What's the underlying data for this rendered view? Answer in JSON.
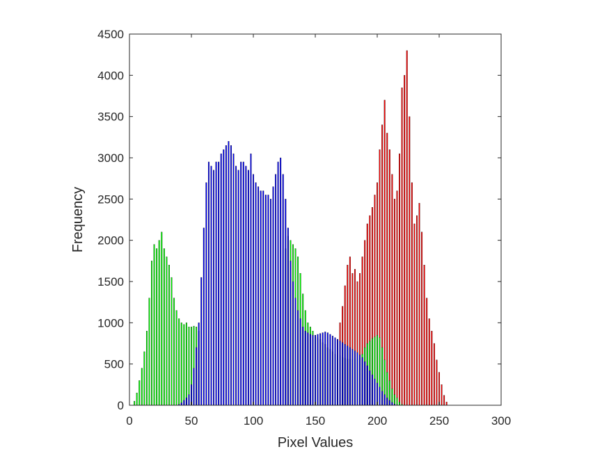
{
  "chart_data": {
    "type": "bar",
    "title": "",
    "xlabel": "Pixel Values",
    "ylabel": "Frequency",
    "xlim": [
      0,
      300
    ],
    "ylim": [
      0,
      4500
    ],
    "xticks": [
      0,
      50,
      100,
      150,
      200,
      250,
      300
    ],
    "yticks": [
      0,
      500,
      1000,
      1500,
      2000,
      2500,
      3000,
      3500,
      4000,
      4500
    ],
    "grid": false,
    "legend": "none",
    "series": [
      {
        "color": "#ff0000",
        "x": [
          168,
          170,
          172,
          174,
          176,
          178,
          180,
          182,
          184,
          186,
          188,
          190,
          192,
          194,
          196,
          198,
          200,
          202,
          204,
          206,
          208,
          210,
          212,
          214,
          216,
          218,
          220,
          222,
          224,
          226,
          228,
          230,
          232,
          234,
          236,
          238,
          240,
          242,
          244,
          246,
          248,
          250,
          252,
          254,
          256
        ],
        "values": [
          800,
          1000,
          1200,
          1450,
          1700,
          1800,
          1600,
          1650,
          1500,
          1600,
          1800,
          2000,
          2200,
          2300,
          2400,
          2550,
          2700,
          3100,
          3400,
          3700,
          3300,
          3100,
          2800,
          2500,
          2600,
          3050,
          3850,
          4000,
          4300,
          3500,
          2700,
          2200,
          2300,
          2450,
          2100,
          1700,
          1300,
          1050,
          900,
          750,
          550,
          400,
          250,
          120,
          40
        ]
      },
      {
        "color": "#00ff00",
        "x": [
          4,
          6,
          8,
          10,
          12,
          14,
          16,
          18,
          20,
          22,
          24,
          26,
          28,
          30,
          32,
          34,
          36,
          38,
          40,
          42,
          44,
          46,
          48,
          50,
          52,
          54,
          56,
          126,
          128,
          130,
          132,
          134,
          136,
          138,
          140,
          142,
          144,
          146,
          148,
          150,
          152,
          154,
          156,
          158,
          160,
          162,
          164,
          166,
          168,
          170,
          172,
          174,
          176,
          178,
          180,
          182,
          184,
          186,
          188,
          190,
          192,
          194,
          196,
          198,
          200,
          202,
          204,
          206,
          208,
          210,
          212,
          214,
          216,
          218,
          220
        ],
        "values": [
          50,
          150,
          300,
          450,
          650,
          900,
          1300,
          1750,
          1950,
          1900,
          2000,
          2100,
          1900,
          1800,
          1700,
          1550,
          1300,
          1150,
          1050,
          1000,
          980,
          1000,
          950,
          950,
          960,
          950,
          900,
          1900,
          2050,
          2000,
          1950,
          1900,
          1800,
          1600,
          1350,
          1150,
          1000,
          950,
          900,
          850,
          820,
          800,
          760,
          740,
          700,
          680,
          650,
          620,
          600,
          600,
          580,
          570,
          560,
          560,
          560,
          560,
          560,
          570,
          620,
          700,
          750,
          780,
          810,
          830,
          850,
          820,
          700,
          550,
          400,
          300,
          200,
          130,
          90,
          40,
          10
        ]
      },
      {
        "color": "#0000ff",
        "x": [
          40,
          42,
          44,
          46,
          48,
          50,
          52,
          54,
          56,
          58,
          60,
          62,
          64,
          66,
          68,
          70,
          72,
          74,
          76,
          78,
          80,
          82,
          84,
          86,
          88,
          90,
          92,
          94,
          96,
          98,
          100,
          102,
          104,
          106,
          108,
          110,
          112,
          114,
          116,
          118,
          120,
          122,
          124,
          126,
          128,
          130,
          132,
          134,
          136,
          138,
          140,
          142,
          144,
          146,
          148,
          150,
          152,
          154,
          156,
          158,
          160,
          162,
          164,
          166,
          168,
          170,
          172,
          174,
          176,
          178,
          180,
          182,
          184,
          186,
          188,
          190,
          192,
          194,
          196,
          198,
          200,
          202,
          204,
          206,
          208,
          210,
          212,
          214,
          216
        ],
        "values": [
          10,
          30,
          60,
          90,
          130,
          250,
          450,
          700,
          1000,
          1550,
          2150,
          2700,
          2950,
          2900,
          2850,
          2950,
          2950,
          3050,
          3100,
          3150,
          3200,
          3150,
          3050,
          2900,
          2850,
          2950,
          2950,
          2900,
          2850,
          3050,
          2800,
          2700,
          2650,
          2600,
          2600,
          2550,
          2550,
          2500,
          2650,
          2800,
          2950,
          3000,
          2800,
          2500,
          2150,
          1750,
          1500,
          1300,
          1150,
          1050,
          950,
          900,
          880,
          860,
          850,
          850,
          860,
          870,
          880,
          890,
          880,
          860,
          840,
          820,
          800,
          780,
          760,
          740,
          720,
          700,
          680,
          660,
          640,
          610,
          580,
          530,
          480,
          420,
          370,
          320,
          270,
          220,
          170,
          130,
          90,
          60,
          35,
          15,
          5
        ]
      }
    ]
  }
}
